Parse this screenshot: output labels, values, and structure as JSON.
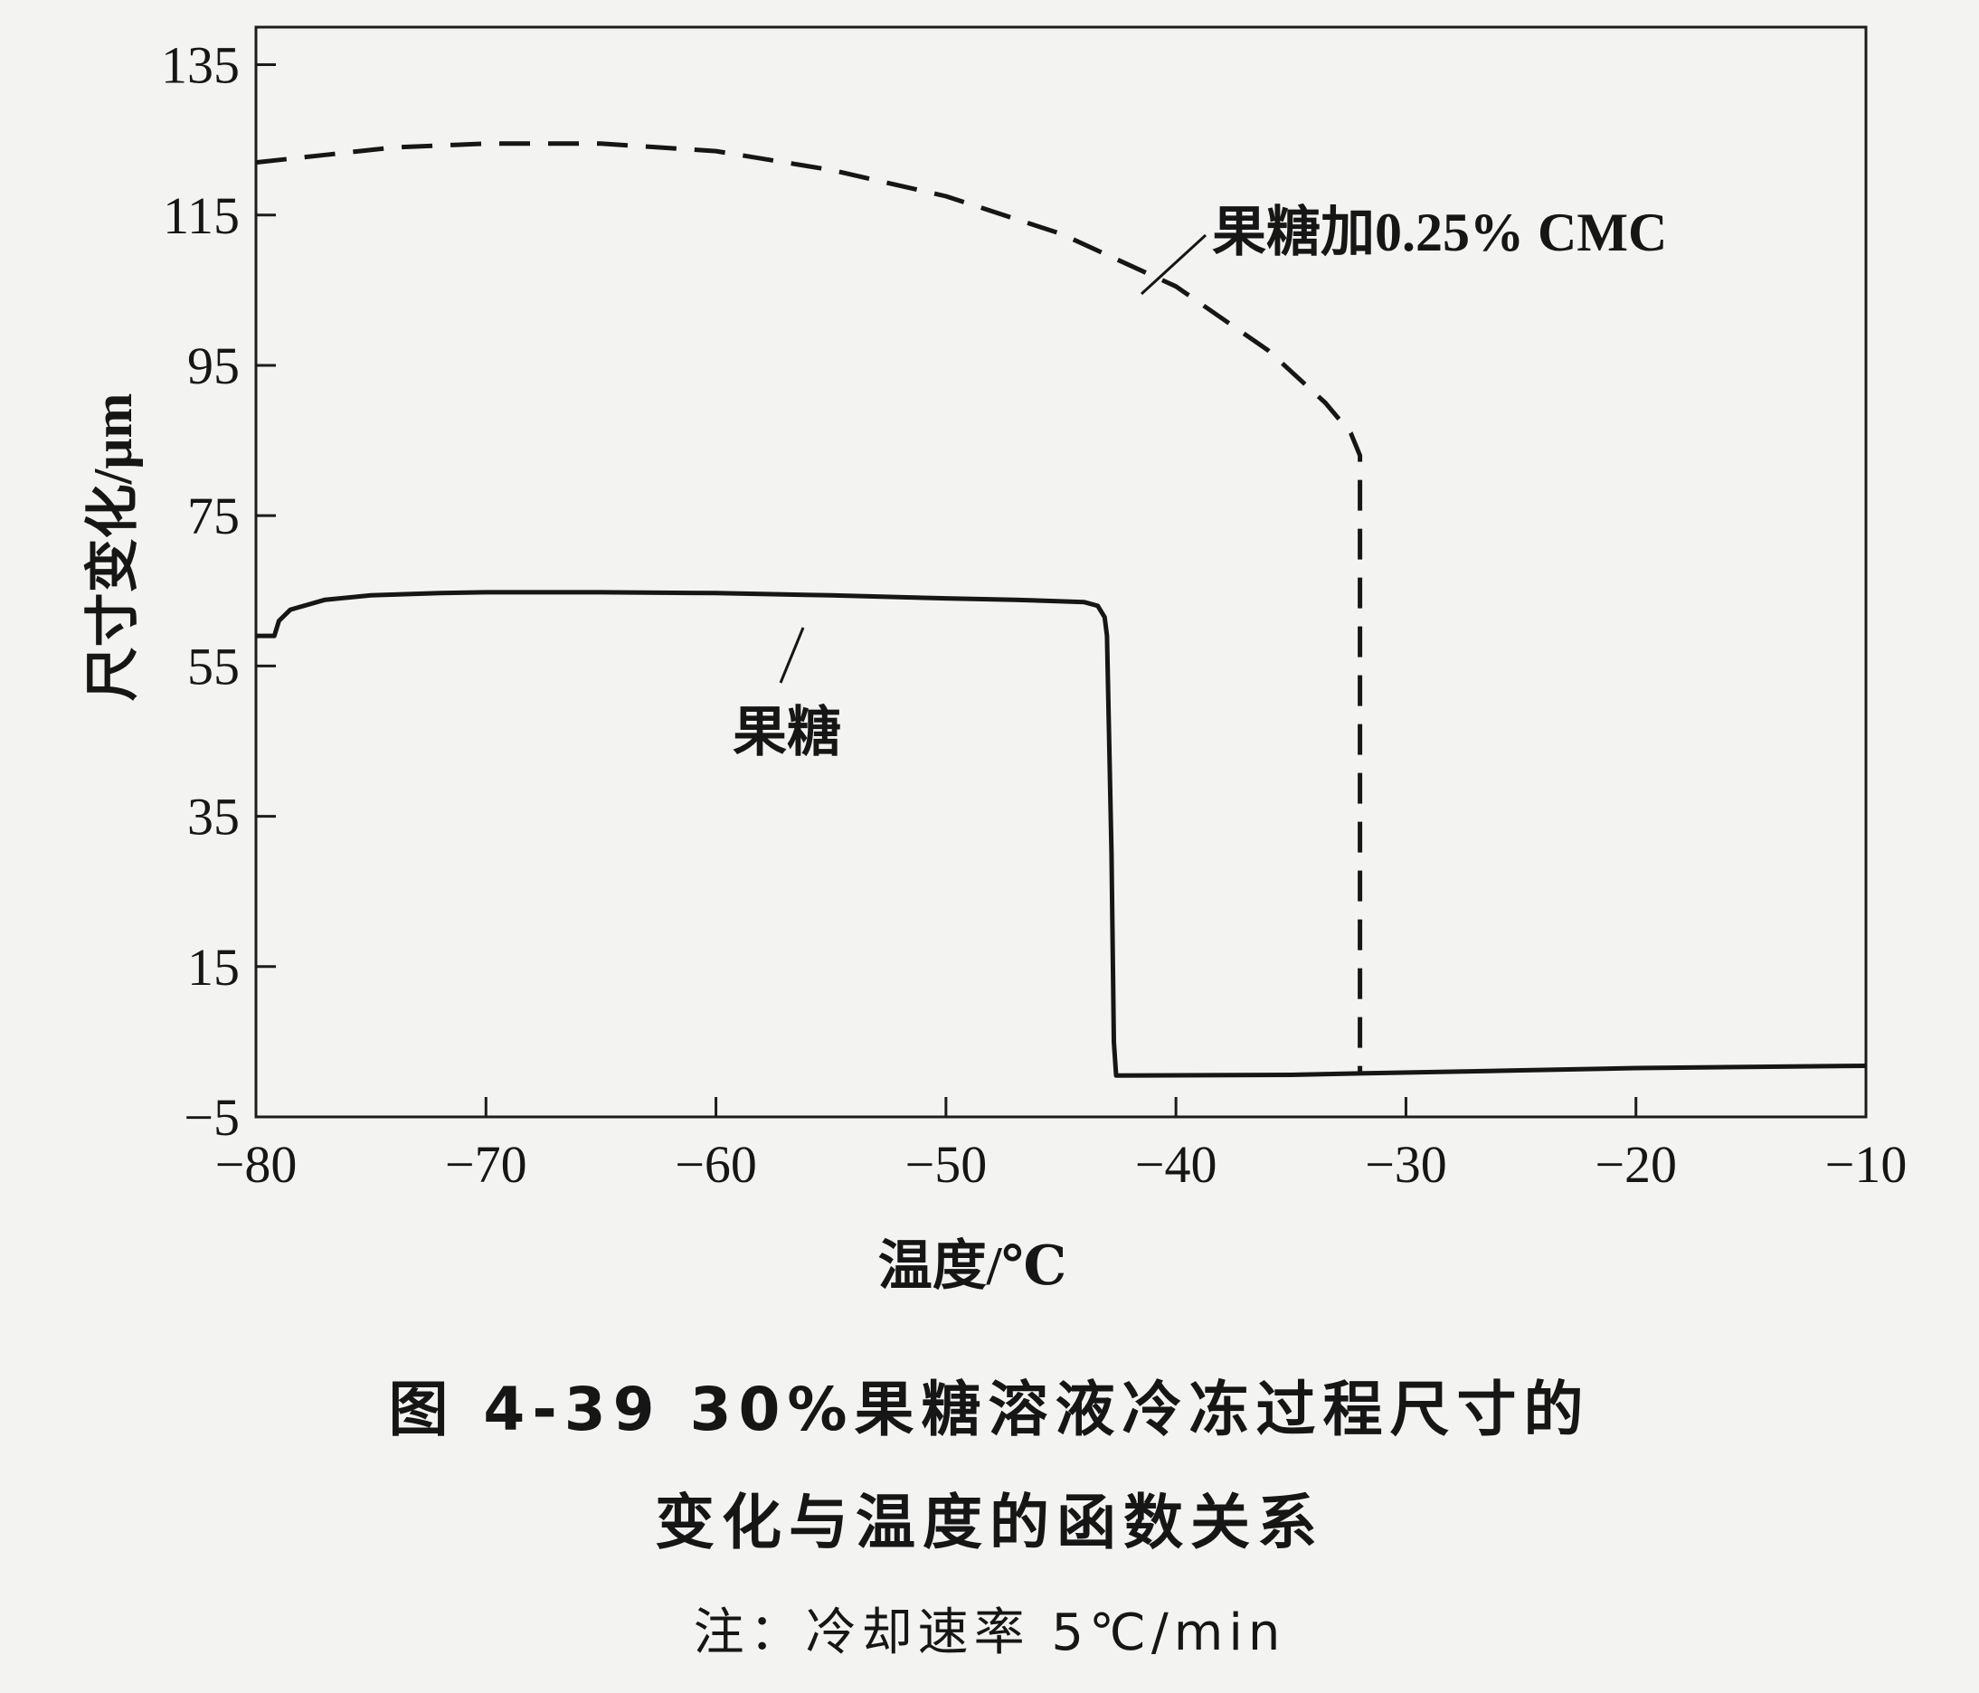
{
  "chart_data": {
    "type": "line",
    "xlabel": "温度/℃",
    "ylabel": "尺寸变化/μm",
    "xlim": [
      -80,
      -10
    ],
    "ylim": [
      -5,
      140
    ],
    "x_ticks": [
      "−80",
      "−70",
      "−60",
      "−50",
      "−40",
      "−30",
      "−20",
      "−10"
    ],
    "y_ticks": [
      "135",
      "115",
      "95",
      "75",
      "55",
      "35",
      "15",
      "−5"
    ],
    "grid": false,
    "legend": "inline labels",
    "series": [
      {
        "name": "果糖",
        "style": "solid",
        "color": "#161616",
        "x": [
          -80,
          -79.2,
          -79,
          -78.5,
          -77,
          -75,
          -72,
          -70,
          -65,
          -60,
          -55,
          -50,
          -47,
          -44,
          -43.4,
          -43.1,
          -43.0,
          -42.8,
          -42.7,
          -42.6,
          -35,
          -31.8,
          -25,
          -20,
          -10
        ],
        "y": [
          59,
          59,
          61,
          62.5,
          63.8,
          64.4,
          64.7,
          64.8,
          64.8,
          64.7,
          64.4,
          64.0,
          63.8,
          63.5,
          63.0,
          61.5,
          59.0,
          30.0,
          5.0,
          0.5,
          0.6,
          0.8,
          1.2,
          1.5,
          1.8
        ]
      },
      {
        "name": "果糖加0.25% CMC",
        "style": "dashed",
        "color": "#161616",
        "x": [
          -80,
          -77,
          -74,
          -70,
          -65,
          -60,
          -55,
          -50,
          -45,
          -40,
          -36,
          -33.5,
          -32.4,
          -32.0,
          -32.0
        ],
        "y": [
          122,
          123,
          124,
          124.5,
          124.5,
          123.5,
          121,
          117.5,
          112.5,
          105.5,
          97,
          90,
          86,
          83,
          1.0
        ]
      }
    ],
    "annotations": [
      {
        "text": "果糖",
        "target": "果糖"
      },
      {
        "text": "果糖加0.25% CMC",
        "target": "果糖加0.25% CMC"
      }
    ]
  },
  "caption": {
    "line1": "图 4-39   30%果糖溶液冷冻过程尺寸的",
    "line2": "变化与温度的函数关系",
    "note": "注：冷却速率 5℃/min"
  }
}
